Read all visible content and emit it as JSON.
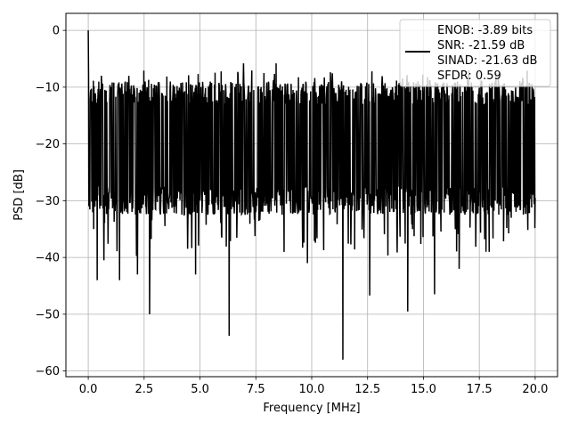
{
  "chart_data": {
    "type": "line",
    "title": "",
    "xlabel": "Frequency [MHz]",
    "ylabel": "PSD [dB]",
    "xlim": [
      -1.0,
      21.0
    ],
    "ylim": [
      -61.0,
      3.0
    ],
    "x_ticks": [
      0.0,
      2.5,
      5.0,
      7.5,
      10.0,
      12.5,
      15.0,
      17.5,
      20.0
    ],
    "x_tick_labels": [
      "0.0",
      "2.5",
      "5.0",
      "7.5",
      "10.0",
      "12.5",
      "15.0",
      "17.5",
      "20.0"
    ],
    "y_ticks": [
      0,
      -10,
      -20,
      -30,
      -40,
      -50,
      -60
    ],
    "y_tick_labels": [
      "0",
      "−10",
      "−20",
      "−30",
      "−40",
      "−50",
      "−60"
    ],
    "grid": true,
    "legend_position": "top-right",
    "legend_entries": [
      "ENOB: -3.89 bits",
      "SNR: -21.59 dB",
      "SINAD: -21.63 dB",
      "SFDR: 0.59"
    ],
    "series": [
      {
        "color": "#000000",
        "x_range": [
          0.0,
          20.0
        ],
        "envelope_upper_typical": -10.5,
        "envelope_lower_typical": -30.0,
        "peak_points": [
          {
            "x": 0.0,
            "y": 0.0
          },
          {
            "x": 0.02,
            "y": -8.0
          },
          {
            "x": 6.95,
            "y": -5.8
          },
          {
            "x": 8.4,
            "y": -5.8
          }
        ],
        "dip_points": [
          {
            "x": 0.4,
            "y": -44.0
          },
          {
            "x": 0.7,
            "y": -40.5
          },
          {
            "x": 1.4,
            "y": -44.0
          },
          {
            "x": 2.2,
            "y": -43.0
          },
          {
            "x": 2.75,
            "y": -50.0
          },
          {
            "x": 4.8,
            "y": -43.0
          },
          {
            "x": 6.3,
            "y": -53.8
          },
          {
            "x": 9.8,
            "y": -41.0
          },
          {
            "x": 11.4,
            "y": -58.0
          },
          {
            "x": 12.6,
            "y": -46.7
          },
          {
            "x": 14.3,
            "y": -49.5
          },
          {
            "x": 15.5,
            "y": -46.5
          },
          {
            "x": 16.6,
            "y": -42.0
          },
          {
            "x": 17.8,
            "y": -39.0
          }
        ]
      }
    ]
  }
}
